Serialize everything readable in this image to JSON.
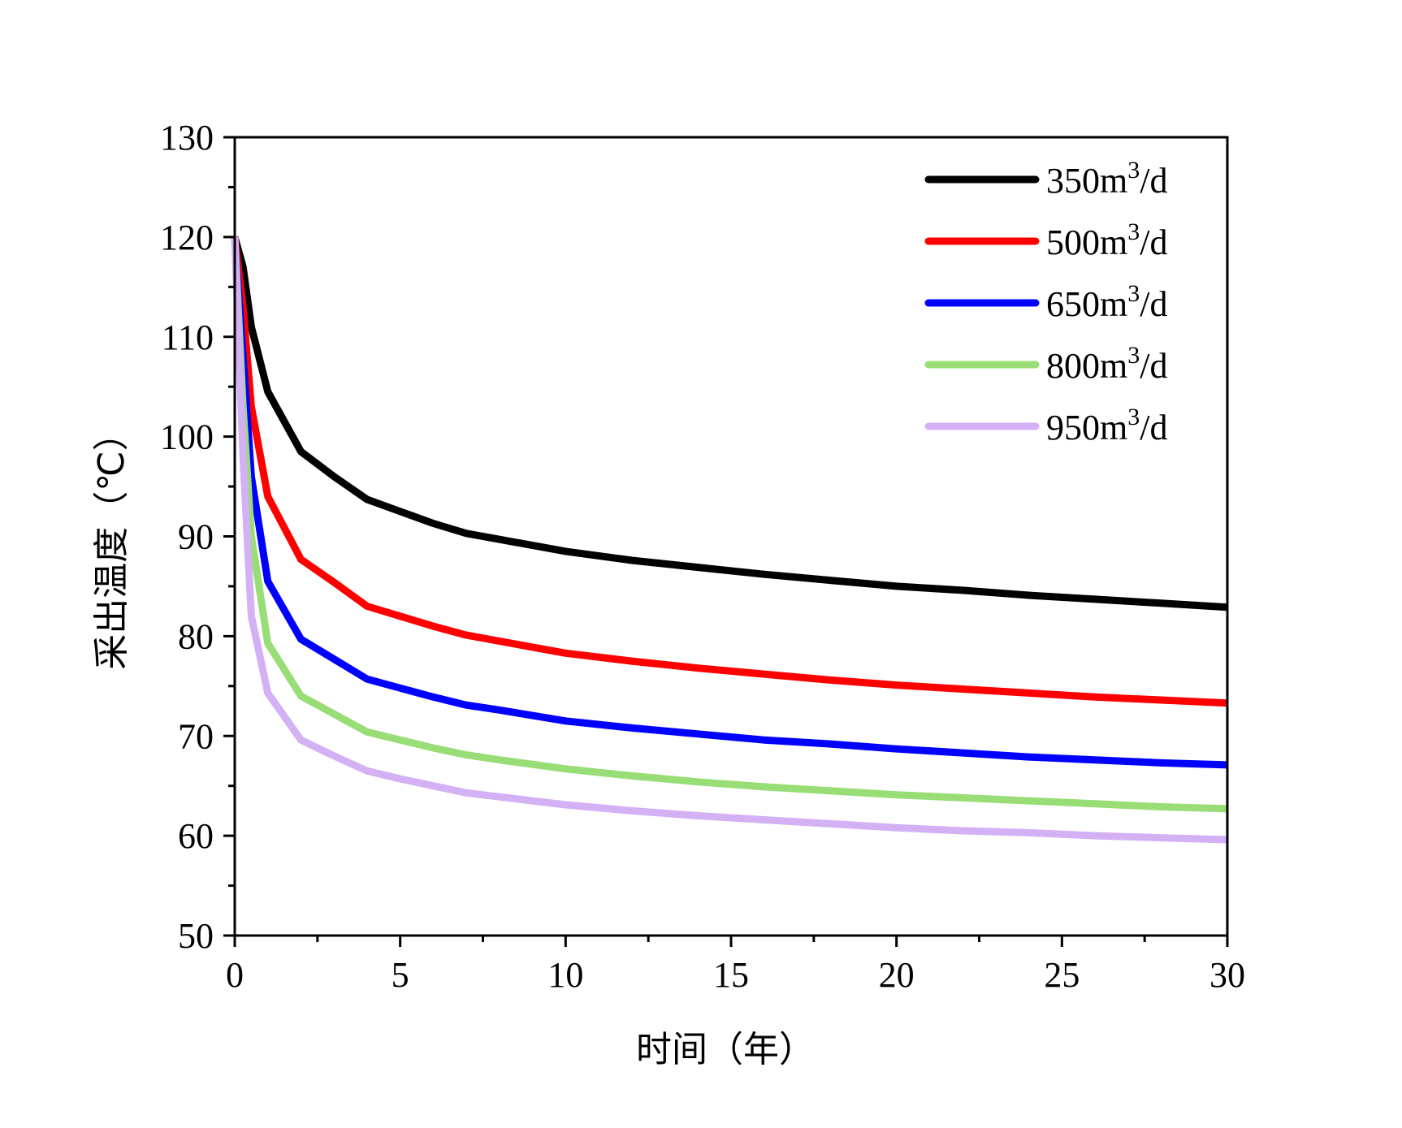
{
  "chart_data": {
    "type": "line",
    "title": "",
    "xlabel": "时间（年）",
    "ylabel": "采出温度（℃）",
    "xlim": [
      0,
      30
    ],
    "ylim": [
      50,
      130
    ],
    "xticks": [
      "0",
      "5",
      "10",
      "15",
      "20",
      "25",
      "30"
    ],
    "yticks": [
      "50",
      "60",
      "70",
      "80",
      "90",
      "100",
      "110",
      "120",
      "130"
    ],
    "grid": false,
    "legend_position": "top-right",
    "series": [
      {
        "name": "350m³/d",
        "color": "#000000",
        "x": [
          0,
          0.25,
          0.5,
          1,
          2,
          3,
          4,
          5,
          6,
          7,
          8,
          10,
          12,
          14,
          16,
          18,
          20,
          22,
          24,
          26,
          28,
          30
        ],
        "y": [
          120,
          117,
          111,
          104.5,
          98.5,
          96,
          93.7,
          92.5,
          91.3,
          90.3,
          89.7,
          88.5,
          87.6,
          86.9,
          86.2,
          85.6,
          85,
          84.6,
          84.1,
          83.7,
          83.3,
          82.9
        ]
      },
      {
        "name": "500m³/d",
        "color": "#ff0000",
        "x": [
          0,
          0.25,
          0.5,
          1,
          2,
          3,
          4,
          5,
          6,
          7,
          8,
          10,
          12,
          14,
          16,
          18,
          20,
          22,
          24,
          26,
          28,
          30
        ],
        "y": [
          120,
          113,
          103,
          94,
          87.7,
          85.4,
          83,
          82,
          81,
          80.1,
          79.5,
          78.3,
          77.5,
          76.8,
          76.2,
          75.6,
          75.1,
          74.7,
          74.3,
          73.9,
          73.6,
          73.3
        ]
      },
      {
        "name": "650m³/d",
        "color": "#0000ff",
        "x": [
          0,
          0.25,
          0.5,
          1,
          2,
          3,
          4,
          5,
          6,
          7,
          8,
          10,
          12,
          14,
          16,
          18,
          20,
          22,
          24,
          26,
          28,
          30
        ],
        "y": [
          120,
          108,
          96,
          85.5,
          79.7,
          77.7,
          75.7,
          74.8,
          73.9,
          73.1,
          72.6,
          71.5,
          70.8,
          70.2,
          69.6,
          69.2,
          68.7,
          68.3,
          67.9,
          67.6,
          67.3,
          67.1
        ]
      },
      {
        "name": "800m³/d",
        "color": "#99dd77",
        "x": [
          0,
          0.25,
          0.5,
          1,
          2,
          3,
          4,
          5,
          6,
          7,
          8,
          10,
          12,
          14,
          16,
          18,
          20,
          22,
          24,
          26,
          28,
          30
        ],
        "y": [
          120,
          103,
          90,
          79.3,
          74,
          72.2,
          70.4,
          69.6,
          68.8,
          68.1,
          67.6,
          66.7,
          66,
          65.4,
          64.9,
          64.5,
          64.1,
          63.8,
          63.5,
          63.2,
          62.9,
          62.7
        ]
      },
      {
        "name": "950m³/d",
        "color": "#d4b0f5",
        "x": [
          0,
          0.25,
          0.5,
          1,
          2,
          3,
          4,
          5,
          6,
          7,
          8,
          10,
          12,
          14,
          16,
          18,
          20,
          22,
          24,
          26,
          28,
          30
        ],
        "y": [
          120,
          98,
          82,
          74.3,
          69.6,
          68,
          66.5,
          65.7,
          65,
          64.3,
          63.9,
          63.1,
          62.5,
          62,
          61.6,
          61.2,
          60.8,
          60.5,
          60.3,
          60,
          59.8,
          59.6
        ]
      }
    ]
  }
}
